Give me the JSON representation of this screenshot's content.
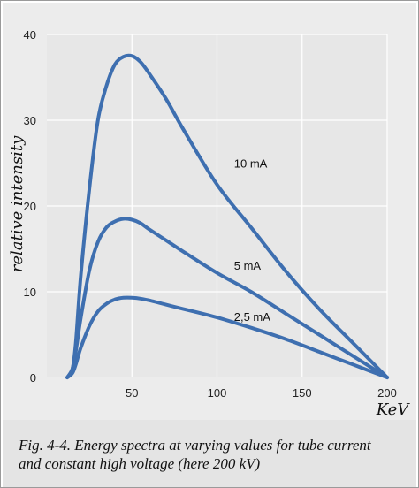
{
  "caption": {
    "line1": "Fig. 4-4. Energy spectra at varying values for tube current",
    "line2": "and constant high voltage (here 200 kV)"
  },
  "colors": {
    "curve": "#3e6fb0",
    "plot_background": "#ececec",
    "gridline": "#ffffff",
    "caption_background": "#e4e4e4"
  },
  "chart_data": {
    "type": "line",
    "title": "",
    "xlabel": "KeV",
    "ylabel": "relative intensity",
    "xlim": [
      0,
      200
    ],
    "ylim": [
      0,
      40
    ],
    "xticks": [
      50,
      100,
      150,
      200
    ],
    "yticks": [
      0,
      10,
      20,
      30,
      40
    ],
    "grid": true,
    "legend": "none (series labeled directly on curves)",
    "series": [
      {
        "name": "10 mA",
        "x": [
          12,
          15,
          17,
          20,
          25,
          30,
          35,
          40,
          45,
          50,
          55,
          60,
          70,
          80,
          100,
          120,
          140,
          160,
          180,
          200
        ],
        "y": [
          0,
          1,
          4,
          12,
          22,
          30,
          34,
          36.5,
          37.4,
          37.5,
          36.8,
          35.5,
          32.5,
          29,
          22.5,
          17.5,
          12.5,
          8,
          4,
          0
        ]
      },
      {
        "name": "5 mA",
        "x": [
          12,
          15,
          17,
          20,
          25,
          30,
          35,
          40,
          45,
          50,
          55,
          60,
          70,
          80,
          100,
          120,
          140,
          160,
          180,
          200
        ],
        "y": [
          0,
          1,
          3,
          7,
          12.5,
          15.8,
          17.5,
          18.2,
          18.5,
          18.4,
          18,
          17.3,
          16,
          14.7,
          12.2,
          10,
          7.5,
          5,
          2.5,
          0
        ]
      },
      {
        "name": "2,5 mA",
        "x": [
          12,
          15,
          17,
          20,
          25,
          30,
          35,
          40,
          45,
          50,
          55,
          60,
          70,
          80,
          100,
          120,
          140,
          160,
          180,
          200
        ],
        "y": [
          0,
          0.5,
          1.5,
          3.5,
          6,
          7.7,
          8.6,
          9.1,
          9.3,
          9.3,
          9.2,
          9,
          8.5,
          8,
          7,
          5.8,
          4.5,
          3,
          1.5,
          0
        ]
      }
    ],
    "series_labels": [
      "10 mA",
      "5 mA",
      "2,5 mA"
    ]
  }
}
